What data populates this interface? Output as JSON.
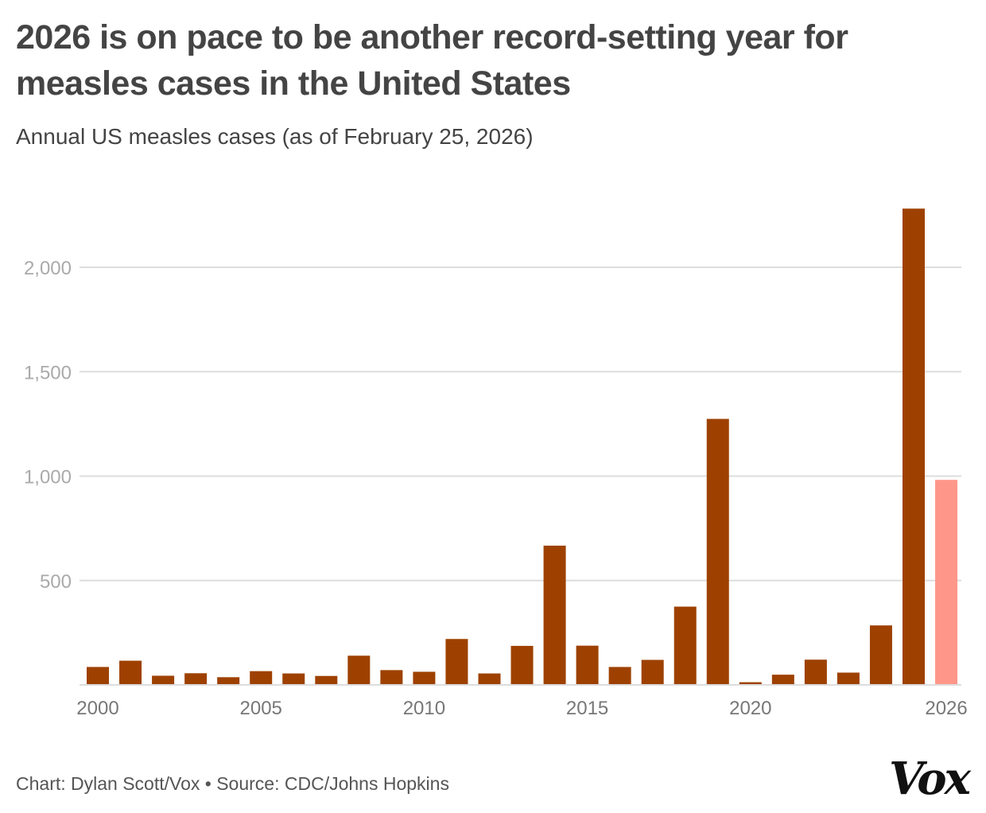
{
  "title": "2026 is on pace to be another record-setting year for measles cases in the United States",
  "subtitle": "Annual US measles cases (as of February 25, 2026)",
  "footer": "Chart: Dylan Scott/Vox • Source: CDC/Johns Hopkins",
  "logo": "Vox",
  "colors": {
    "bar": "#9e4100",
    "highlight": "#ff968a",
    "grid": "#dddddd",
    "tick": "#aaaaaa"
  },
  "chart_data": {
    "type": "bar",
    "title": "2026 is on pace to be another record-setting year for measles cases in the United States",
    "xlabel": "",
    "ylabel": "Annual US measles cases",
    "ylim": [
      0,
      2300
    ],
    "yticks": [
      500,
      1000,
      1500,
      2000
    ],
    "ytick_labels": [
      "500",
      "1,000",
      "1,500",
      "2,000"
    ],
    "xtick_years": [
      2000,
      2005,
      2010,
      2015,
      2020,
      2026
    ],
    "xtick_labels": [
      "2000",
      "2005",
      "2010",
      "2015",
      "2020",
      "2026"
    ],
    "categories": [
      2000,
      2001,
      2002,
      2003,
      2004,
      2005,
      2006,
      2007,
      2008,
      2009,
      2010,
      2011,
      2012,
      2013,
      2014,
      2015,
      2016,
      2017,
      2018,
      2019,
      2020,
      2021,
      2022,
      2023,
      2024,
      2025,
      2026
    ],
    "values": [
      86,
      116,
      44,
      56,
      37,
      66,
      55,
      43,
      140,
      71,
      63,
      220,
      55,
      187,
      667,
      188,
      86,
      120,
      375,
      1274,
      13,
      49,
      121,
      59,
      285,
      2281,
      982
    ],
    "highlight": [
      2026
    ],
    "grid": true
  }
}
